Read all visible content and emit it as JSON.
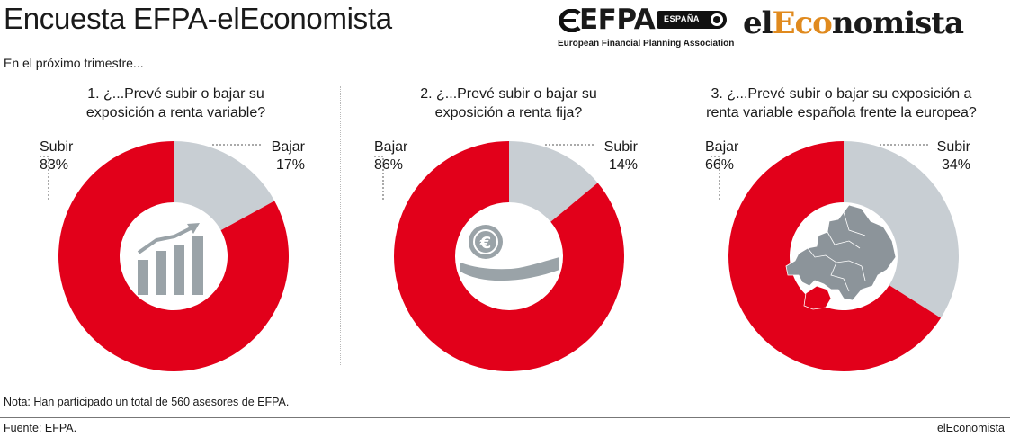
{
  "header": {
    "title": "Encuesta EFPA-elEconomista",
    "subtitle": "En el próximo trimestre...",
    "logo_efpa": "EFPA",
    "logo_efpa_country": "ESPAÑA",
    "logo_efpa_sub": "European Financial Planning Association",
    "logo_eleco_pre": "el",
    "logo_eleco_accent": "Eco",
    "logo_eleco_post": "nomista"
  },
  "colors": {
    "red": "#e2001a",
    "grey": "#c8ced3",
    "icon": "#9aa3a8",
    "accent": "#e08a1e"
  },
  "chart_data": [
    {
      "type": "pie",
      "title": "1. ¿...Prevé subir o bajar su exposición a renta variable?",
      "title_lines": [
        "1. ¿...Prevé subir o bajar su",
        "exposición a renta variable?"
      ],
      "icon": "bar-chart-growth-icon",
      "slices": [
        {
          "label": "Bajar",
          "value": 17,
          "text": "17%",
          "color": "#c8ced3"
        },
        {
          "label": "Subir",
          "value": 83,
          "text": "83%",
          "color": "#e2001a"
        }
      ]
    },
    {
      "type": "pie",
      "title": "2. ¿...Prevé subir o bajar su exposición a renta fija?",
      "title_lines": [
        "2. ¿...Prevé subir o bajar su",
        "exposición a renta fija?"
      ],
      "icon": "hand-euro-coin-icon",
      "slices": [
        {
          "label": "Subir",
          "value": 14,
          "text": "14%",
          "color": "#c8ced3"
        },
        {
          "label": "Bajar",
          "value": 86,
          "text": "86%",
          "color": "#e2001a"
        }
      ]
    },
    {
      "type": "pie",
      "title": "3. ¿...Prevé subir o bajar su exposición a renta variable española frente la europea?",
      "title_lines": [
        "3. ¿...Prevé subir o bajar su exposición a",
        "renta variable española frente la europea?"
      ],
      "icon": "europe-map-icon",
      "slices": [
        {
          "label": "Subir",
          "value": 34,
          "text": "34%",
          "color": "#c8ced3"
        },
        {
          "label": "Bajar",
          "value": 66,
          "text": "66%",
          "color": "#e2001a"
        }
      ]
    }
  ],
  "footer": {
    "note": "Nota: Han participado un total de 560 asesores de EFPA.",
    "source": "Fuente: EFPA.",
    "brand": "elEconomista"
  }
}
